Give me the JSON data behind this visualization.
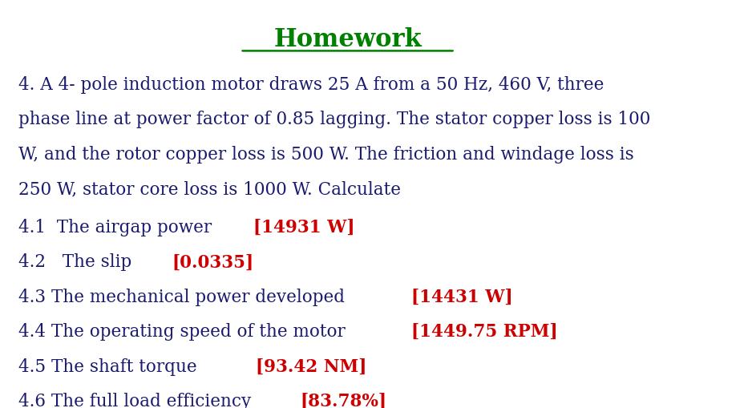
{
  "title": "Homework",
  "title_color": "#008000",
  "title_fontsize": 22,
  "background_color": "#ffffff",
  "text_color": "#1a1a6e",
  "answer_color": "#cc0000",
  "body_fontsize": 15.5,
  "paragraph": "4. A 4- pole induction motor draws 25 A from a 50 Hz, 460 V, three\nphase line at power factor of 0.85 lagging. The stator copper loss is 100\nW, and the rotor copper loss is 500 W. The friction and windage loss is\n250 W, stator core loss is 1000 W. Calculate",
  "lines": [
    {
      "black": "4.1  The airgap power ",
      "red": "[14931 W]"
    },
    {
      "black": "4.2   The slip   ",
      "red": "[0.0335]"
    },
    {
      "black": "4.3 The mechanical power developed ",
      "red": "[14431 W]"
    },
    {
      "black": "4.4 The operating speed of the motor ",
      "red": "[1449.75 RPM]"
    },
    {
      "black": "4.5 The shaft torque    ",
      "red": "[93.42 NM]"
    },
    {
      "black": "4.6 The full load efficiency ",
      "red": "[83.78%]"
    }
  ]
}
